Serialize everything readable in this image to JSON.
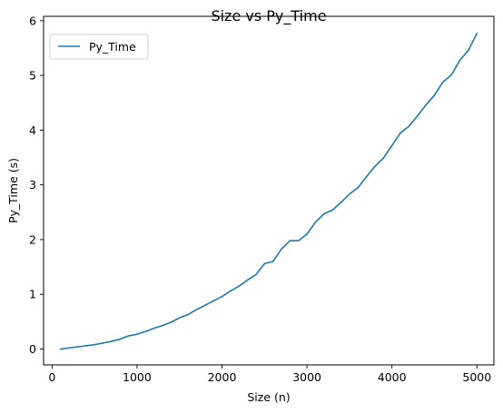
{
  "chart_data": {
    "type": "line",
    "title": "Size vs Py_Time",
    "xlabel": "Size (n)",
    "ylabel": "Py_Time (s)",
    "xlim": [
      -100,
      5200
    ],
    "ylim": [
      -0.29,
      6.08
    ],
    "xticks": [
      0,
      1000,
      2000,
      3000,
      4000,
      5000
    ],
    "yticks": [
      0,
      1,
      2,
      3,
      4,
      5,
      6
    ],
    "grid": false,
    "legend_position": "top-left",
    "series": [
      {
        "name": "Py_Time",
        "color": "#1f77b4",
        "x": [
          100,
          200,
          300,
          400,
          500,
          600,
          700,
          800,
          900,
          1000,
          1100,
          1200,
          1300,
          1400,
          1500,
          1600,
          1700,
          1800,
          1900,
          2000,
          2100,
          2200,
          2300,
          2400,
          2500,
          2600,
          2700,
          2800,
          2900,
          3000,
          3100,
          3200,
          3300,
          3400,
          3500,
          3600,
          3700,
          3800,
          3900,
          4000,
          4100,
          4200,
          4300,
          4400,
          4500,
          4600,
          4700,
          4800,
          4900,
          5000
        ],
        "y": [
          0.0,
          0.02,
          0.04,
          0.06,
          0.08,
          0.11,
          0.14,
          0.18,
          0.24,
          0.27,
          0.32,
          0.38,
          0.43,
          0.49,
          0.57,
          0.63,
          0.72,
          0.8,
          0.88,
          0.96,
          1.06,
          1.15,
          1.26,
          1.36,
          1.56,
          1.6,
          1.83,
          1.98,
          1.98,
          2.1,
          2.32,
          2.47,
          2.54,
          2.68,
          2.83,
          2.95,
          3.15,
          3.34,
          3.49,
          3.72,
          3.95,
          4.07,
          4.26,
          4.46,
          4.64,
          4.88,
          5.01,
          5.28,
          5.46,
          5.77
        ]
      }
    ]
  }
}
